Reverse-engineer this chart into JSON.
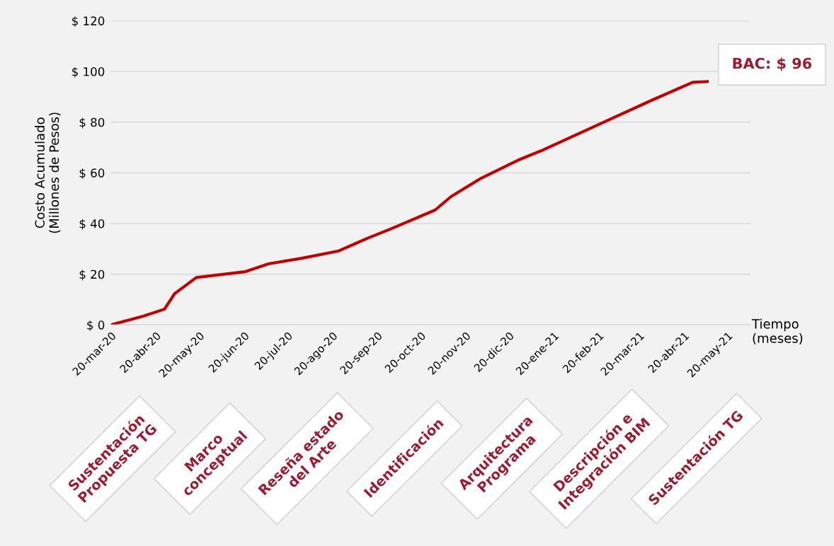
{
  "chart_data": {
    "type": "line",
    "ylabel": "Costo Acumulado\n(Millones de Pesos)",
    "xlabel": "Tiempo\n(meses)",
    "x": [
      "2020-03-20",
      "2020-04-11",
      "2020-04-26",
      "2020-05-03",
      "2020-05-11",
      "2020-05-18",
      "2020-06-21",
      "2020-07-07",
      "2020-07-30",
      "2020-08-24",
      "2020-09-13",
      "2020-09-30",
      "2020-10-30",
      "2020-11-10",
      "2020-11-30",
      "2020-12-26",
      "2021-01-13",
      "2021-03-01",
      "2021-03-29",
      "2021-04-26",
      "2021-05-06"
    ],
    "series": [
      {
        "color": "#c00000",
        "values": [
          0,
          3.4,
          6.2,
          12.3,
          15.7,
          18.7,
          21,
          24.1,
          26.3,
          29.1,
          34.1,
          38,
          45.3,
          50.6,
          57.6,
          64.9,
          69.1,
          81.4,
          88.7,
          95.7,
          96
        ]
      }
    ],
    "xlim": [
      "2020-03-20",
      "2021-06-05"
    ],
    "xticks": [
      {
        "value": "2020-03-20",
        "label": "20-mar-20"
      },
      {
        "value": "2020-04-20",
        "label": "20-abr-20"
      },
      {
        "value": "2020-05-20",
        "label": "20-may-20"
      },
      {
        "value": "2020-06-20",
        "label": "20-jun-20"
      },
      {
        "value": "2020-07-20",
        "label": "20-jul-20"
      },
      {
        "value": "2020-08-20",
        "label": "20-ago-20"
      },
      {
        "value": "2020-09-20",
        "label": "20-sep-20"
      },
      {
        "value": "2020-10-20",
        "label": "20-oct-20"
      },
      {
        "value": "2020-11-20",
        "label": "20-nov-20"
      },
      {
        "value": "2020-12-20",
        "label": "20-dic-20"
      },
      {
        "value": "2021-01-20",
        "label": "20-ene-21"
      },
      {
        "value": "2021-02-20",
        "label": "20-feb-21"
      },
      {
        "value": "2021-03-20",
        "label": "20-mar-21"
      },
      {
        "value": "2021-04-20",
        "label": "20-abr-21"
      },
      {
        "value": "2021-05-20",
        "label": "20-may-21"
      }
    ],
    "ylim": [
      0,
      120
    ],
    "yticks": [
      {
        "value": 0,
        "label": "$ 0"
      },
      {
        "value": 20,
        "label": "$ 20"
      },
      {
        "value": 40,
        "label": "$ 40"
      },
      {
        "value": 60,
        "label": "$ 60"
      },
      {
        "value": 80,
        "label": "$ 80"
      },
      {
        "value": 100,
        "label": "$ 100"
      },
      {
        "value": 120,
        "label": "$ 120"
      }
    ],
    "grid": "y",
    "marker": "none",
    "line_style": "solid",
    "annotations": [
      {
        "text": "BAC: $ 96",
        "x": "2021-05-06",
        "y": 96
      },
      "Sustentación\nPropuesta TG",
      "Marco\nconceptual",
      "Reseña estado\ndel Arte",
      "Identificación",
      "Arquitectura\nPrograma",
      "Descripción e\nIntegración BIM",
      "Sustentación TG"
    ]
  }
}
